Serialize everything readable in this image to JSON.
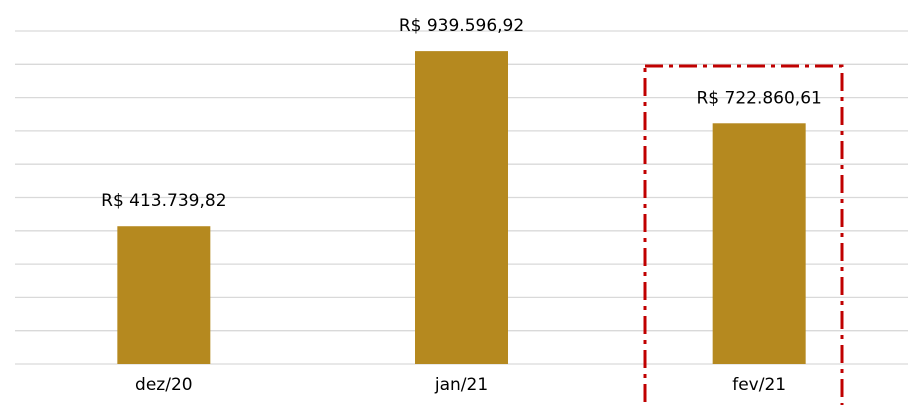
{
  "chart_data": {
    "type": "bar",
    "categories": [
      "dez/20",
      "jan/21",
      "fev/21"
    ],
    "values": [
      413739.82,
      939596.92,
      722860.61
    ],
    "value_labels": [
      "R$ 413.739,82",
      "R$ 939.596,92",
      "R$ 722.860,61"
    ],
    "color": "#b5891f",
    "ylim": [
      0,
      1000000
    ],
    "yticks": [
      0,
      100000,
      200000,
      300000,
      400000,
      500000,
      600000,
      700000,
      800000,
      900000,
      1000000
    ],
    "grid": true
  }
}
